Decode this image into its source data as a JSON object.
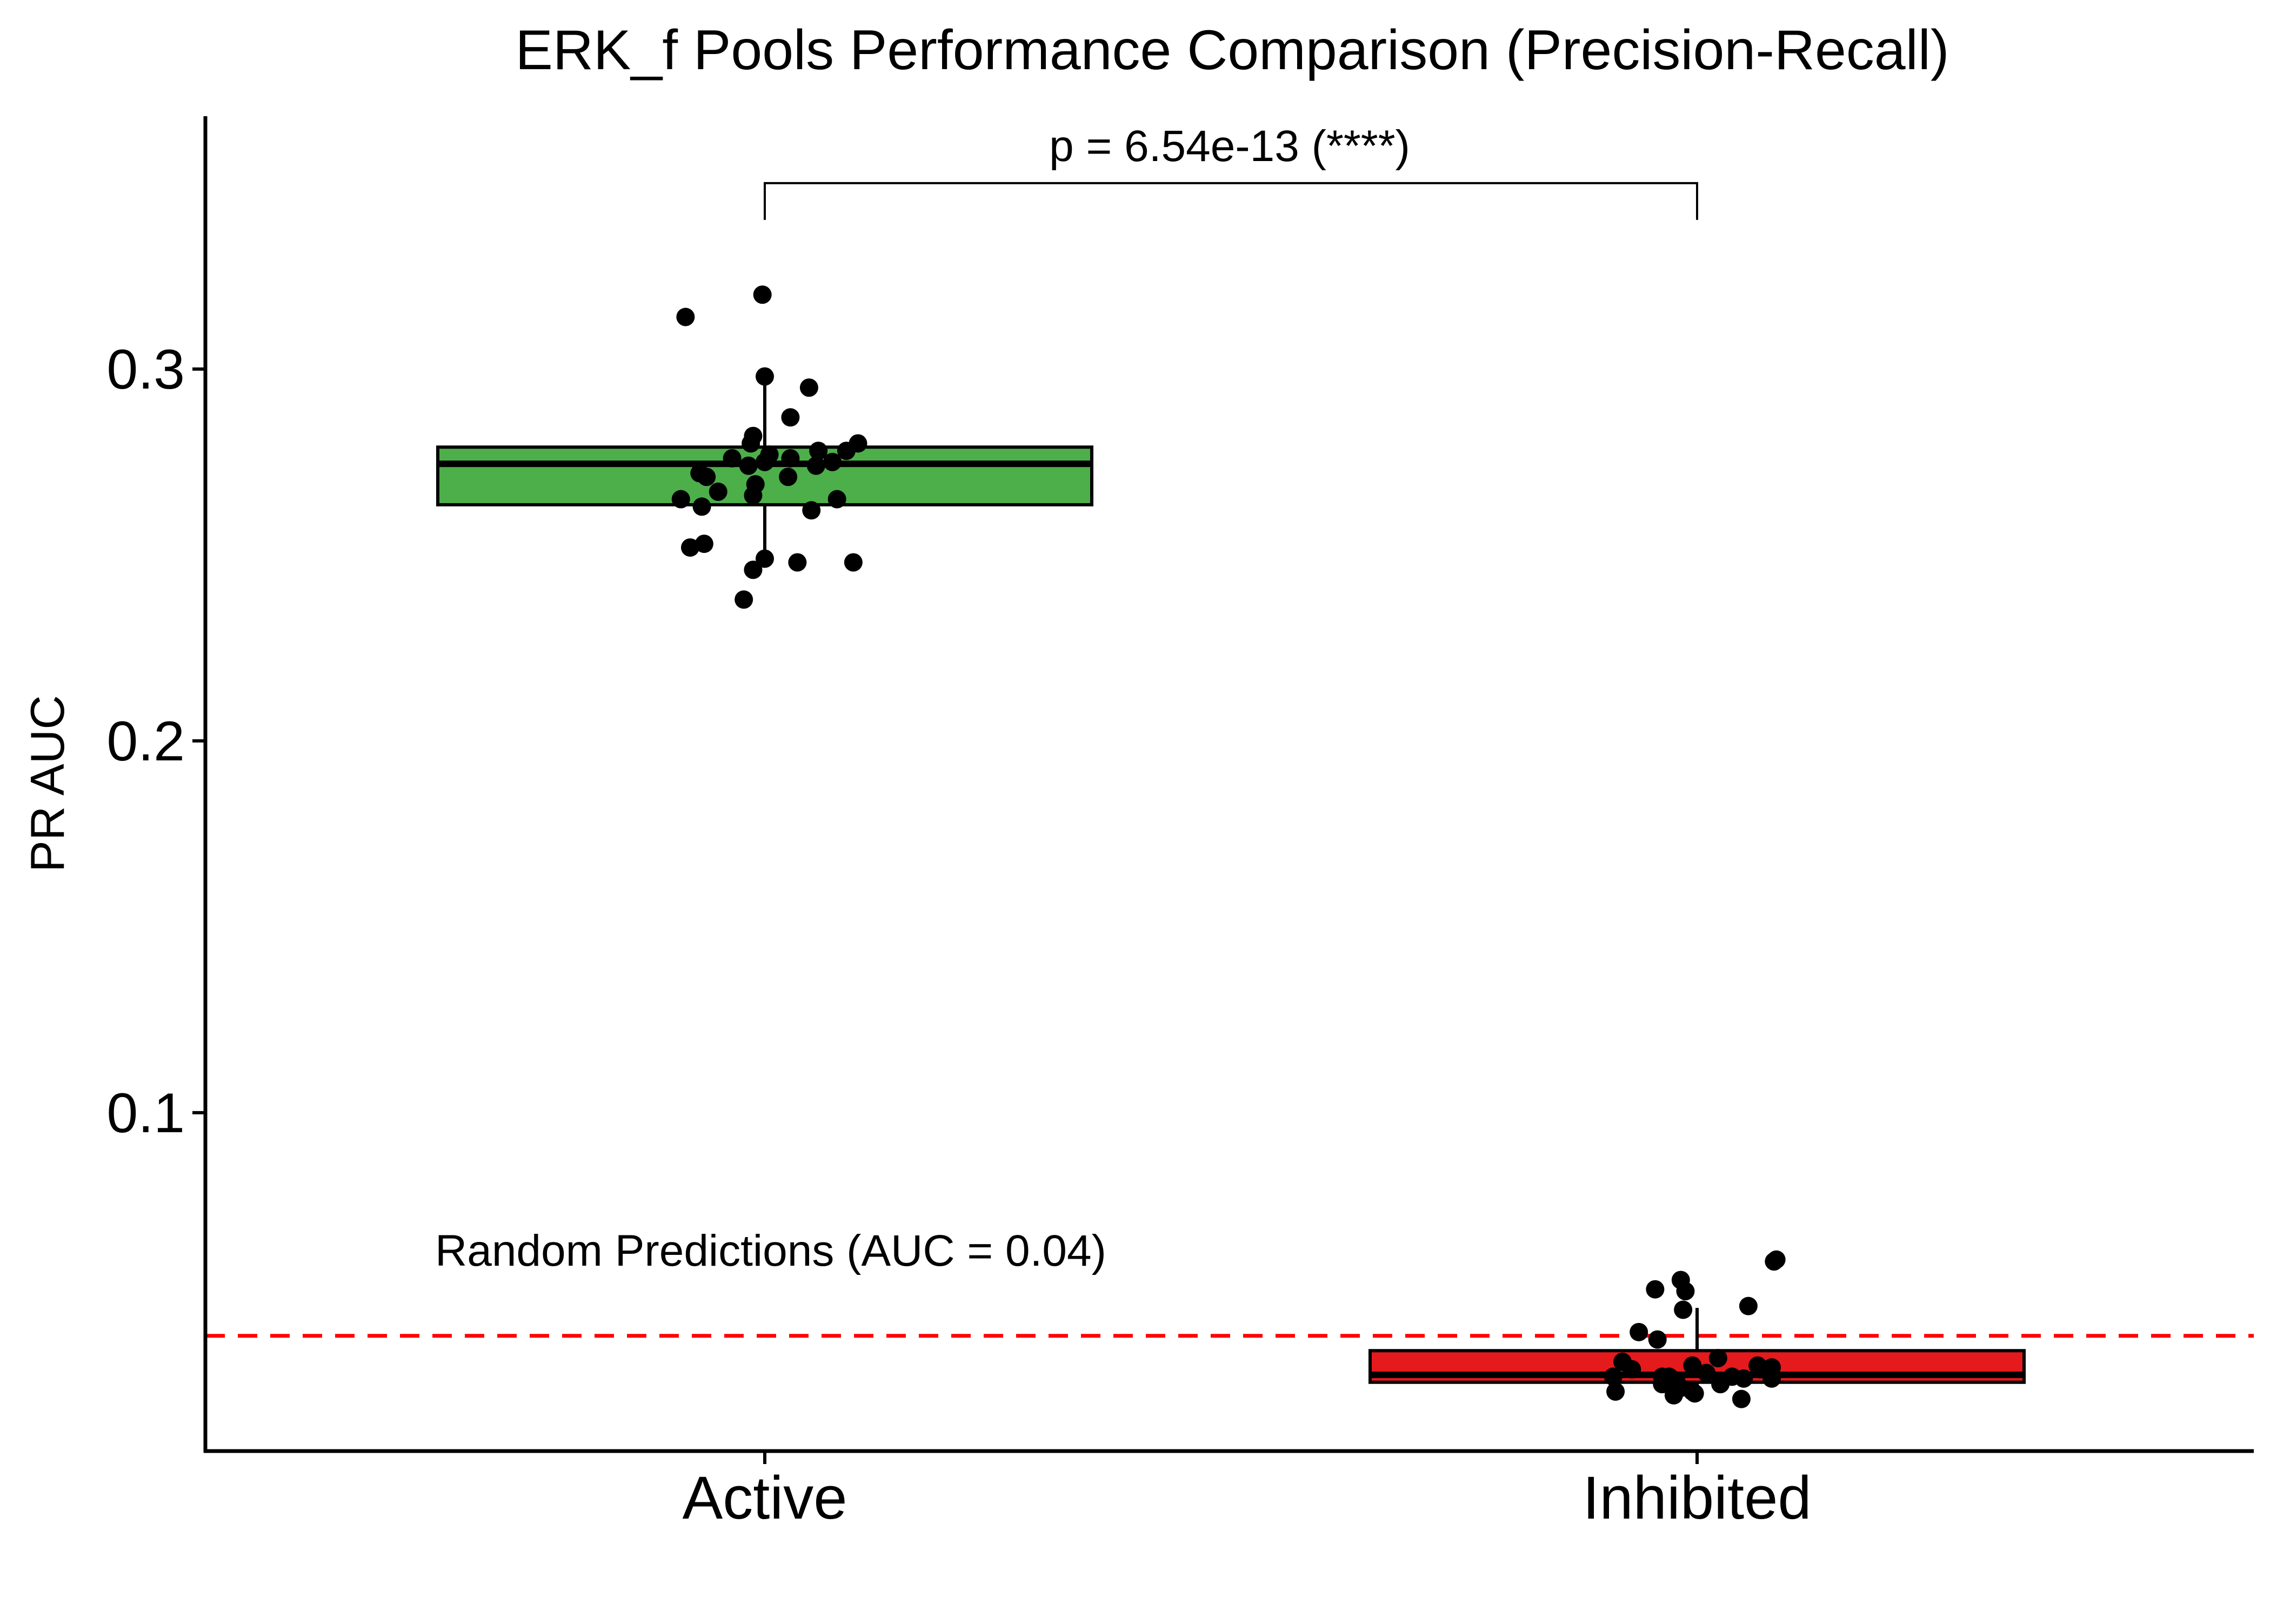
{
  "chart_data": {
    "type": "box",
    "title": "ERK_f Pools Performance Comparison (Precision-Recall)",
    "xlabel": "",
    "ylabel": "PR AUC",
    "categories": [
      "Active",
      "Inhibited"
    ],
    "ylim": [
      0.009,
      0.368
    ],
    "yticks": [
      0.1,
      0.2,
      0.3
    ],
    "ytick_labels": [
      "0.1",
      "0.2",
      "0.3"
    ],
    "grid": false,
    "legend": "none",
    "boxes": [
      {
        "category": "Active",
        "color": "#4daf4a",
        "whisker_low": 0.249,
        "q1": 0.2635,
        "median": 0.2745,
        "q3": 0.279,
        "whisker_high": 0.298,
        "points": [
          {
            "x": -0.17,
            "y": 0.314
          },
          {
            "x": -0.005,
            "y": 0.32
          },
          {
            "x": 0.0,
            "y": 0.298
          },
          {
            "x": 0.095,
            "y": 0.295
          },
          {
            "x": 0.055,
            "y": 0.287
          },
          {
            "x": -0.025,
            "y": 0.282
          },
          {
            "x": -0.03,
            "y": 0.28
          },
          {
            "x": 0.2,
            "y": 0.28
          },
          {
            "x": 0.175,
            "y": 0.278
          },
          {
            "x": 0.115,
            "y": 0.278
          },
          {
            "x": 0.01,
            "y": 0.277
          },
          {
            "x": 0.055,
            "y": 0.276
          },
          {
            "x": -0.07,
            "y": 0.276
          },
          {
            "x": 0.145,
            "y": 0.275
          },
          {
            "x": 0.0,
            "y": 0.275
          },
          {
            "x": 0.11,
            "y": 0.274
          },
          {
            "x": -0.035,
            "y": 0.274
          },
          {
            "x": -0.14,
            "y": 0.272
          },
          {
            "x": -0.125,
            "y": 0.271
          },
          {
            "x": 0.05,
            "y": 0.271
          },
          {
            "x": -0.02,
            "y": 0.269
          },
          {
            "x": -0.1,
            "y": 0.267
          },
          {
            "x": -0.18,
            "y": 0.265
          },
          {
            "x": 0.155,
            "y": 0.265
          },
          {
            "x": -0.025,
            "y": 0.266
          },
          {
            "x": -0.135,
            "y": 0.263
          },
          {
            "x": 0.1,
            "y": 0.262
          },
          {
            "x": -0.13,
            "y": 0.253
          },
          {
            "x": -0.16,
            "y": 0.252
          },
          {
            "x": 0.0,
            "y": 0.249
          },
          {
            "x": 0.07,
            "y": 0.248
          },
          {
            "x": 0.19,
            "y": 0.248
          },
          {
            "x": -0.025,
            "y": 0.246
          },
          {
            "x": -0.045,
            "y": 0.238
          }
        ]
      },
      {
        "category": "Inhibited",
        "color": "#e41a1c",
        "whisker_low": 0.0225,
        "q1": 0.0275,
        "median": 0.0295,
        "q3": 0.036,
        "whisker_high": 0.0475,
        "points": [
          {
            "x": 0.165,
            "y": 0.06
          },
          {
            "x": 0.17,
            "y": 0.0605
          },
          {
            "x": -0.035,
            "y": 0.055
          },
          {
            "x": -0.09,
            "y": 0.0525
          },
          {
            "x": -0.025,
            "y": 0.052
          },
          {
            "x": 0.11,
            "y": 0.048
          },
          {
            "x": -0.03,
            "y": 0.047
          },
          {
            "x": -0.125,
            "y": 0.041
          },
          {
            "x": -0.085,
            "y": 0.039
          },
          {
            "x": 0.045,
            "y": 0.034
          },
          {
            "x": -0.16,
            "y": 0.033
          },
          {
            "x": -0.14,
            "y": 0.031
          },
          {
            "x": -0.01,
            "y": 0.032
          },
          {
            "x": 0.13,
            "y": 0.032
          },
          {
            "x": 0.16,
            "y": 0.0315
          },
          {
            "x": 0.135,
            "y": 0.031
          },
          {
            "x": 0.02,
            "y": 0.03
          },
          {
            "x": -0.075,
            "y": 0.029
          },
          {
            "x": 0.075,
            "y": 0.029
          },
          {
            "x": -0.18,
            "y": 0.029
          },
          {
            "x": -0.06,
            "y": 0.029
          },
          {
            "x": 0.1,
            "y": 0.0285
          },
          {
            "x": 0.16,
            "y": 0.0285
          },
          {
            "x": -0.045,
            "y": 0.028
          },
          {
            "x": -0.075,
            "y": 0.027
          },
          {
            "x": 0.05,
            "y": 0.027
          },
          {
            "x": -0.035,
            "y": 0.026
          },
          {
            "x": -0.01,
            "y": 0.025
          },
          {
            "x": -0.05,
            "y": 0.024
          },
          {
            "x": -0.175,
            "y": 0.025
          },
          {
            "x": -0.005,
            "y": 0.0245
          },
          {
            "x": 0.095,
            "y": 0.023
          }
        ]
      }
    ],
    "reference_line": {
      "y": 0.04,
      "label": "Random Predictions (AUC = 0.04)",
      "color": "#ff0000",
      "style": "dashed"
    },
    "significance": {
      "from": "Active",
      "to": "Inhibited",
      "y": 0.35,
      "label": "p = 6.54e-13 (****)"
    }
  }
}
